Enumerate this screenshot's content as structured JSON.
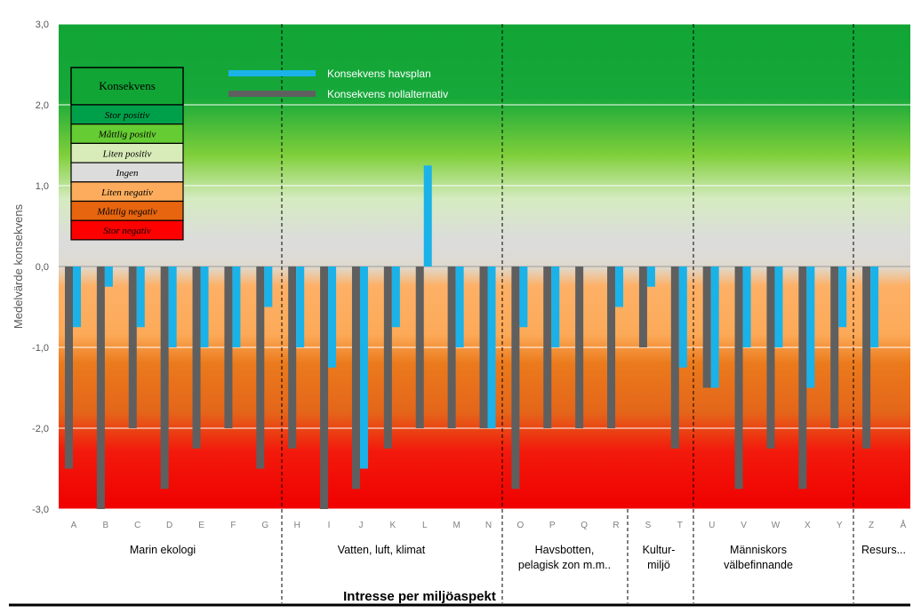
{
  "chart_data": {
    "type": "bar",
    "ylabel": "Medelvärde konsekvens",
    "xlabel": "Intresse per miljöaspekt",
    "ylim": [
      -3.0,
      3.0
    ],
    "yticks": [
      "3,0",
      "2,0",
      "1,0",
      "0,0",
      "-1,0",
      "-2,0",
      "-3,0"
    ],
    "ytick_values": [
      3,
      2,
      1,
      0,
      -1,
      -2,
      -3
    ],
    "categories": [
      "A",
      "B",
      "C",
      "D",
      "E",
      "F",
      "G",
      "H",
      "I",
      "J",
      "K",
      "L",
      "M",
      "N",
      "O",
      "P",
      "Q",
      "R",
      "S",
      "T",
      "U",
      "V",
      "W",
      "X",
      "Y",
      "Z",
      "Å"
    ],
    "series": [
      {
        "name": "Konsekvens havsplan",
        "color": "#1ab2e8",
        "values": [
          -0.75,
          -0.25,
          -0.75,
          -1.0,
          -1.0,
          -1.0,
          -0.5,
          -1.0,
          -1.25,
          -2.5,
          -0.75,
          1.25,
          -1.0,
          -2.0,
          -0.75,
          -1.0,
          null,
          -0.5,
          -0.25,
          -1.25,
          -1.5,
          -1.0,
          -1.0,
          -1.5,
          -0.75,
          -1.0,
          null
        ]
      },
      {
        "name": "Konsekvens nollalternativ",
        "color": "#5f5f5f",
        "values": [
          -2.5,
          -3.0,
          -2.0,
          -2.75,
          -2.25,
          -2.0,
          -2.5,
          -2.25,
          -3.0,
          -2.75,
          -2.25,
          -2.0,
          -2.0,
          -2.0,
          -2.75,
          -2.0,
          -2.0,
          -2.0,
          -1.0,
          -2.25,
          -1.5,
          -2.75,
          -2.25,
          -2.75,
          -2.0,
          -2.25,
          null
        ]
      }
    ],
    "groups": [
      {
        "lines": [
          "Marin ekologi"
        ]
      },
      {
        "lines": [
          "Vatten, luft, klimat"
        ]
      },
      {
        "lines": [
          "Havsbotten,",
          "pelagisk zon m.m.."
        ]
      },
      {
        "lines": [
          "Kultur-",
          "miljö"
        ]
      },
      {
        "lines": [
          "Människors",
          "välbefinnande"
        ]
      },
      {
        "lines": [
          "Resurs..."
        ]
      }
    ],
    "legend": {
      "position": "top-left",
      "items": [
        "Konsekvens havsplan",
        "Konsekvens nollalternativ"
      ]
    },
    "key": {
      "title": "Konsekvens",
      "rows": [
        {
          "label": "Stor positiv",
          "color": "#00a04a"
        },
        {
          "label": "Måttlig positiv",
          "color": "#66cc33"
        },
        {
          "label": "Liten positiv",
          "color": "#d8ecb9"
        },
        {
          "label": "Ingen",
          "color": "#dcdcdc"
        },
        {
          "label": "Liten negativ",
          "color": "#fcac5c"
        },
        {
          "label": "Måttlig negativ",
          "color": "#e8650f"
        },
        {
          "label": "Stor negativ",
          "color": "#ff0000"
        }
      ]
    },
    "background_zones": {
      "positive": "#11a535",
      "neutral": "#d9d9d9",
      "negative_light": "#fdae60",
      "negative_mid": "#e8731a",
      "negative_strong": "#f00000"
    },
    "grid": true
  }
}
